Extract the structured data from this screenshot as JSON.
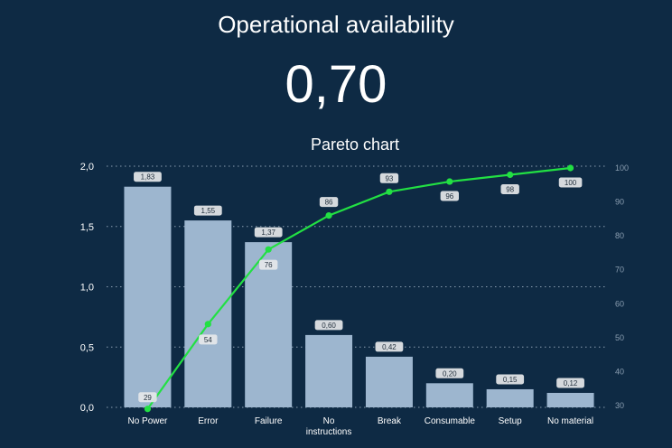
{
  "kpi": {
    "title": "Operational availability",
    "value": "0,70"
  },
  "chart_data": {
    "type": "bar",
    "title": "Pareto chart",
    "categories": [
      "No Power",
      "Error",
      "Failure",
      "No instructions",
      "Break",
      "Consumable",
      "Setup",
      "No material"
    ],
    "series": [
      {
        "type": "bar",
        "axis": "left",
        "values": [
          1.83,
          1.55,
          1.37,
          0.6,
          0.42,
          0.2,
          0.15,
          0.12
        ],
        "labels": [
          "1,83",
          "1,55",
          "1,37",
          "0,60",
          "0,42",
          "0,20",
          "0,15",
          "0,12"
        ]
      },
      {
        "type": "line",
        "axis": "right",
        "values": [
          29,
          54,
          76,
          86,
          93,
          96,
          98,
          100
        ],
        "labels": [
          "29",
          "54",
          "76",
          "86",
          "93",
          "96",
          "98",
          "100"
        ]
      }
    ],
    "y_left": {
      "lim": [
        0,
        2.0
      ],
      "ticks": [
        "0,0",
        "0,5",
        "1,0",
        "1,5",
        "2,0"
      ]
    },
    "y_right": {
      "lim": [
        30,
        100
      ],
      "ticks": [
        "30",
        "40",
        "50",
        "60",
        "70",
        "80",
        "90",
        "100"
      ]
    },
    "grid": true,
    "colors": {
      "background": "#0e2a44",
      "bar": "#9db6cf",
      "line": "#22e043",
      "gridline": "#8a9db0",
      "label_box": "#e6e8ea"
    }
  }
}
